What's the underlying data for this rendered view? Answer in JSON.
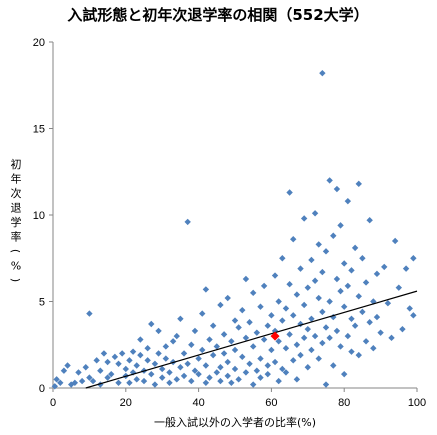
{
  "chart_data": {
    "type": "scatter",
    "title": "入試形態と初年次退学率の相関（552大学）",
    "xlabel": "一般入試以外の入学者の比率(%)",
    "ylabel": "初年次退学率(%)",
    "xlim": [
      0,
      100
    ],
    "ylim": [
      0,
      20
    ],
    "x_ticks": [
      "0",
      "20",
      "40",
      "60",
      "80",
      "100"
    ],
    "y_ticks": [
      "0",
      "5",
      "10",
      "15",
      "20"
    ],
    "grid": false,
    "legend": "none",
    "colors": {
      "points": "#4f81bd",
      "highlight": "#ff0000",
      "trendline": "#000000"
    },
    "highlight_point": {
      "x": 61,
      "y": 3.0
    },
    "trendline": {
      "x": [
        9,
        100
      ],
      "y": [
        0,
        5.6
      ]
    },
    "series": [
      {
        "points": [
          [
            0.5,
            0.1
          ],
          [
            1,
            0.5
          ],
          [
            2,
            0.3
          ],
          [
            3,
            1.0
          ],
          [
            4,
            1.3
          ],
          [
            5,
            0.2
          ],
          [
            6,
            0.3
          ],
          [
            7,
            0.9
          ],
          [
            8,
            0.4
          ],
          [
            9,
            1.2
          ],
          [
            10,
            4.3
          ],
          [
            10,
            0.6
          ],
          [
            11,
            0.4
          ],
          [
            12,
            1.6
          ],
          [
            13,
            1.0
          ],
          [
            13,
            0.2
          ],
          [
            14,
            2.0
          ],
          [
            15,
            0.6
          ],
          [
            15,
            1.5
          ],
          [
            16,
            0.8
          ],
          [
            17,
            1.8
          ],
          [
            18,
            0.3
          ],
          [
            18,
            1.4
          ],
          [
            19,
            2.0
          ],
          [
            20,
            0.7
          ],
          [
            20,
            1.1
          ],
          [
            21,
            0.3
          ],
          [
            21,
            1.6
          ],
          [
            22,
            2.1
          ],
          [
            22,
            0.9
          ],
          [
            23,
            0.5
          ],
          [
            23,
            1.3
          ],
          [
            24,
            1.9
          ],
          [
            24,
            2.8
          ],
          [
            25,
            0.4
          ],
          [
            25,
            1.0
          ],
          [
            26,
            1.6
          ],
          [
            26,
            2.3
          ],
          [
            27,
            0.8
          ],
          [
            27,
            3.7
          ],
          [
            28,
            0.2
          ],
          [
            28,
            1.4
          ],
          [
            29,
            2.0
          ],
          [
            29,
            3.3
          ],
          [
            30,
            0.6
          ],
          [
            30,
            1.1
          ],
          [
            31,
            2.4
          ],
          [
            31,
            1.7
          ],
          [
            32,
            0.3
          ],
          [
            32,
            0.9
          ],
          [
            33,
            1.5
          ],
          [
            33,
            2.7
          ],
          [
            34,
            0.5
          ],
          [
            34,
            3.0
          ],
          [
            35,
            1.2
          ],
          [
            35,
            4.0
          ],
          [
            36,
            0.7
          ],
          [
            36,
            2.0
          ],
          [
            37,
            1.4
          ],
          [
            37,
            9.6
          ],
          [
            38,
            0.4
          ],
          [
            38,
            2.5
          ],
          [
            39,
            1.0
          ],
          [
            39,
            3.3
          ],
          [
            40,
            0.8
          ],
          [
            40,
            1.7
          ],
          [
            41,
            2.2
          ],
          [
            41,
            4.3
          ],
          [
            42,
            0.3
          ],
          [
            42,
            5.7
          ],
          [
            42,
            1.3
          ],
          [
            43,
            2.8
          ],
          [
            43,
            0.6
          ],
          [
            44,
            3.6
          ],
          [
            44,
            1.9
          ],
          [
            45,
            0.9
          ],
          [
            45,
            2.4
          ],
          [
            46,
            1.2
          ],
          [
            46,
            4.8
          ],
          [
            46,
            0.4
          ],
          [
            47,
            3.1
          ],
          [
            47,
            2.0
          ],
          [
            48,
            0.7
          ],
          [
            48,
            5.2
          ],
          [
            48,
            1.5
          ],
          [
            49,
            2.7
          ],
          [
            49,
            0.3
          ],
          [
            50,
            3.9
          ],
          [
            50,
            1.1
          ],
          [
            50,
            2.2
          ],
          [
            51,
            0.5
          ],
          [
            51,
            3.5
          ],
          [
            52,
            1.8
          ],
          [
            52,
            4.5
          ],
          [
            53,
            0.9
          ],
          [
            53,
            2.9
          ],
          [
            53,
            6.3
          ],
          [
            54,
            1.4
          ],
          [
            54,
            3.8
          ],
          [
            55,
            0.2
          ],
          [
            55,
            2.4
          ],
          [
            55,
            5.5
          ],
          [
            56,
            1.0
          ],
          [
            56,
            3.2
          ],
          [
            57,
            4.7
          ],
          [
            57,
            1.7
          ],
          [
            57,
            0.6
          ],
          [
            58,
            2.8
          ],
          [
            58,
            5.9
          ],
          [
            59,
            1.3
          ],
          [
            59,
            3.6
          ],
          [
            59,
            0.8
          ],
          [
            60,
            4.2
          ],
          [
            60,
            2.2
          ],
          [
            61,
            6.5
          ],
          [
            61,
            1.5
          ],
          [
            61,
            3.3
          ],
          [
            62,
            0.4
          ],
          [
            62,
            5.0
          ],
          [
            62,
            2.7
          ],
          [
            63,
            1.1
          ],
          [
            63,
            3.9
          ],
          [
            63,
            7.5
          ],
          [
            64,
            2.3
          ],
          [
            64,
            4.6
          ],
          [
            64,
            0.9
          ],
          [
            65,
            6.0
          ],
          [
            65,
            3.1
          ],
          [
            65,
            11.3
          ],
          [
            66,
            1.6
          ],
          [
            66,
            8.6
          ],
          [
            66,
            4.2
          ],
          [
            67,
            2.5
          ],
          [
            67,
            5.4
          ],
          [
            67,
            0.5
          ],
          [
            68,
            3.7
          ],
          [
            68,
            6.9
          ],
          [
            68,
            1.9
          ],
          [
            69,
            4.8
          ],
          [
            69,
            2.9
          ],
          [
            69,
            9.8
          ],
          [
            70,
            3.4
          ],
          [
            70,
            5.8
          ],
          [
            70,
            1.2
          ],
          [
            71,
            7.4
          ],
          [
            71,
            4.0
          ],
          [
            71,
            2.2
          ],
          [
            72,
            6.2
          ],
          [
            72,
            3.0
          ],
          [
            72,
            10.1
          ],
          [
            73,
            5.2
          ],
          [
            73,
            1.7
          ],
          [
            73,
            8.3
          ],
          [
            74,
            4.4
          ],
          [
            74,
            2.6
          ],
          [
            74,
            18.2
          ],
          [
            74,
            6.7
          ],
          [
            75,
            3.5
          ],
          [
            75,
            7.9
          ],
          [
            75,
            0.2
          ],
          [
            76,
            12.0
          ],
          [
            76,
            5.0
          ],
          [
            76,
            2.9
          ],
          [
            77,
            4.1
          ],
          [
            77,
            8.8
          ],
          [
            77,
            1.3
          ],
          [
            78,
            6.3
          ],
          [
            78,
            3.3
          ],
          [
            78,
            11.5
          ],
          [
            79,
            5.6
          ],
          [
            79,
            2.4
          ],
          [
            79,
            9.4
          ],
          [
            80,
            4.7
          ],
          [
            80,
            7.2
          ],
          [
            80,
            0.8
          ],
          [
            81,
            3.0
          ],
          [
            81,
            10.8
          ],
          [
            81,
            5.9
          ],
          [
            82,
            2.1
          ],
          [
            82,
            6.8
          ],
          [
            82,
            4.0
          ],
          [
            83,
            8.1
          ],
          [
            83,
            3.6
          ],
          [
            84,
            5.3
          ],
          [
            84,
            1.9
          ],
          [
            84,
            11.8
          ],
          [
            85,
            7.5
          ],
          [
            85,
            4.4
          ],
          [
            86,
            2.7
          ],
          [
            86,
            6.1
          ],
          [
            87,
            3.8
          ],
          [
            87,
            9.7
          ],
          [
            88,
            5.0
          ],
          [
            88,
            2.3
          ],
          [
            89,
            6.6
          ],
          [
            89,
            4.1
          ],
          [
            90,
            3.2
          ],
          [
            91,
            7.0
          ],
          [
            92,
            4.9
          ],
          [
            93,
            2.9
          ],
          [
            94,
            8.5
          ],
          [
            95,
            5.8
          ],
          [
            96,
            3.4
          ],
          [
            97,
            6.9
          ],
          [
            98,
            4.6
          ],
          [
            99,
            7.5
          ],
          [
            99,
            4.2
          ]
        ]
      }
    ]
  }
}
